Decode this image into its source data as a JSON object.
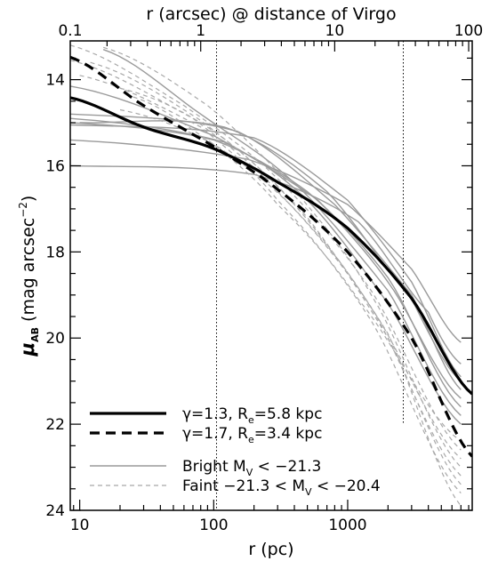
{
  "chart_data": {
    "type": "line",
    "xlabel_bottom": "r (pc)",
    "xlabel_top": "r (arcsec) @ distance of Virgo",
    "ylabel": "μ_AB (mag arcsec⁻²)",
    "ylabel_main": "μ",
    "ylabel_sub": "AB",
    "ylabel_rest": " (mag arcsec",
    "ylabel_sup": "−2",
    "ylabel_close": ")",
    "xscale": "log",
    "x_range_pc": [
      8.5,
      8500
    ],
    "y_range": [
      24,
      13.1
    ],
    "y_inverted": true,
    "bottom_ticks": [
      {
        "value": 10,
        "label": "10"
      },
      {
        "value": 100,
        "label": "100"
      },
      {
        "value": 1000,
        "label": "1000"
      }
    ],
    "top_ticks": [
      {
        "value_arcsec": 0.1,
        "label": "0.1"
      },
      {
        "value_arcsec": 1,
        "label": "1"
      },
      {
        "value_arcsec": 10,
        "label": "10"
      },
      {
        "value_arcsec": 100,
        "label": "100"
      }
    ],
    "left_ticks": [
      {
        "value": 14,
        "label": "14"
      },
      {
        "value": 16,
        "label": "16"
      },
      {
        "value": 18,
        "label": "18"
      },
      {
        "value": 20,
        "label": "20"
      },
      {
        "value": 22,
        "label": "22"
      },
      {
        "value": 24,
        "label": "24"
      }
    ],
    "vertical_lines_pc": [
      105,
      2600
    ],
    "legend": [
      {
        "text_main": "γ=1.3, R",
        "text_sub": "e",
        "text_rest": "=5.8 kpc",
        "style": "thick-solid"
      },
      {
        "text_main": "γ=1.7, R",
        "text_sub": "e",
        "text_rest": "=3.4 kpc",
        "style": "thick-dashed"
      },
      {
        "text_main": "Bright M",
        "text_sub": "V",
        "text_rest": " < −21.3",
        "style": "thin-gray-solid"
      },
      {
        "text_main": "Faint −21.3 < M",
        "text_sub": "V",
        "text_rest": " < −20.4",
        "style": "thin-gray-dashed"
      }
    ],
    "series": [
      {
        "kind": "model",
        "style": "thick-solid",
        "x": [
          8.5,
          30,
          100,
          300,
          1000,
          3000,
          8500
        ],
        "y": [
          14.42,
          15.1,
          15.6,
          16.38,
          17.45,
          19.08,
          21.3
        ]
      },
      {
        "kind": "model",
        "style": "thick-dashed",
        "x": [
          8.5,
          30,
          100,
          300,
          1000,
          3000,
          8500
        ],
        "y": [
          13.48,
          14.6,
          15.55,
          16.55,
          18.0,
          20.0,
          22.75
        ]
      }
    ],
    "bright_profiles": [
      {
        "x": [
          8.5,
          200,
          1000,
          3000,
          7000
        ],
        "y": [
          15.05,
          15.35,
          16.8,
          18.7,
          20.9
        ]
      },
      {
        "x": [
          8.5,
          150,
          800,
          3000,
          7000
        ],
        "y": [
          14.8,
          15.2,
          16.9,
          19.0,
          21.2
        ]
      },
      {
        "x": [
          8.5,
          100,
          600,
          2000,
          7000
        ],
        "y": [
          14.15,
          15.3,
          16.8,
          18.7,
          21.4
        ]
      },
      {
        "x": [
          8.5,
          180,
          1000,
          3000,
          7000
        ],
        "y": [
          15.4,
          15.85,
          16.9,
          18.4,
          20.1
        ]
      },
      {
        "x": [
          8.5,
          200,
          1200,
          4000,
          7000
        ],
        "y": [
          16.0,
          16.2,
          17.3,
          19.4,
          20.6
        ]
      },
      {
        "x": [
          8.5,
          100,
          500,
          2000,
          7000
        ],
        "y": [
          15.0,
          15.4,
          16.6,
          18.6,
          21.6
        ]
      },
      {
        "x": [
          15,
          80,
          400,
          2000,
          7000
        ],
        "y": [
          13.3,
          14.8,
          16.4,
          18.9,
          21.8
        ]
      },
      {
        "x": [
          10,
          120,
          700,
          3000,
          7000
        ],
        "y": [
          15.0,
          15.1,
          16.6,
          19.1,
          21.0
        ]
      },
      {
        "x": [
          8.5,
          120,
          500,
          2000,
          7000
        ],
        "y": [
          14.9,
          15.45,
          16.8,
          19.2,
          22.0
        ]
      }
    ],
    "faint_profiles": [
      {
        "x": [
          8.5,
          60,
          300,
          1500,
          7000
        ],
        "y": [
          13.2,
          14.6,
          16.3,
          18.9,
          22.6
        ]
      },
      {
        "x": [
          8.5,
          70,
          300,
          1500,
          7000
        ],
        "y": [
          13.55,
          14.9,
          16.6,
          19.3,
          23.2
        ]
      },
      {
        "x": [
          10,
          80,
          300,
          1500,
          7000
        ],
        "y": [
          13.9,
          15.1,
          16.8,
          19.6,
          23.6
        ]
      },
      {
        "x": [
          12,
          80,
          400,
          2000,
          7000
        ],
        "y": [
          13.6,
          14.95,
          16.9,
          19.9,
          23.9
        ]
      },
      {
        "x": [
          15,
          90,
          400,
          1500,
          7000
        ],
        "y": [
          13.25,
          14.6,
          16.55,
          19.0,
          23.0
        ]
      },
      {
        "x": [
          20,
          100,
          500,
          2000,
          7000
        ],
        "y": [
          14.2,
          15.2,
          17.2,
          20.0,
          23.4
        ]
      },
      {
        "x": [
          20,
          100,
          400,
          1500,
          7000
        ],
        "y": [
          14.7,
          15.5,
          17.0,
          19.3,
          22.8
        ]
      },
      {
        "x": [
          25,
          100,
          300,
          1200,
          7000
        ],
        "y": [
          14.4,
          15.5,
          16.9,
          19.1,
          22.4
        ]
      }
    ]
  }
}
